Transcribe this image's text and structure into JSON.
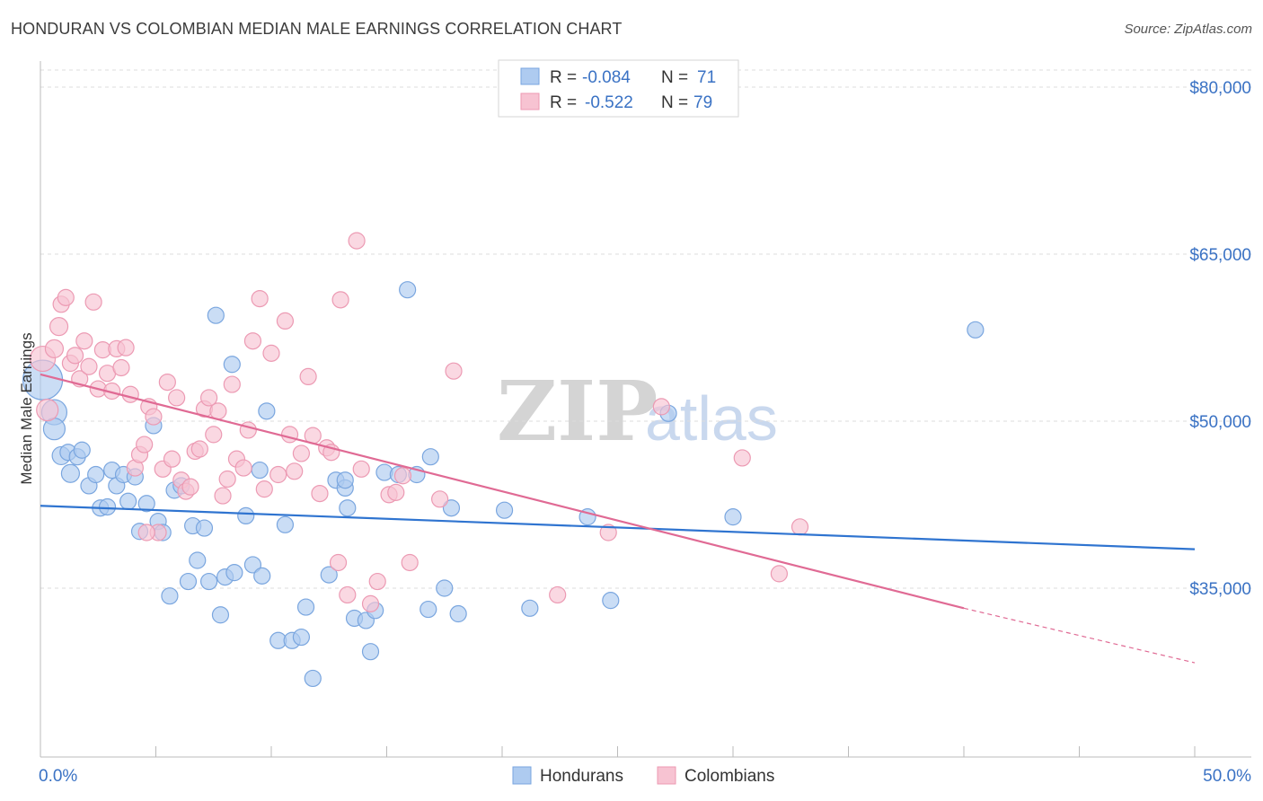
{
  "title": "HONDURAN VS COLOMBIAN MEDIAN MALE EARNINGS CORRELATION CHART",
  "source": "Source: ZipAtlas.com",
  "colors": {
    "hondurans_fill": "#aecbf0",
    "hondurans_stroke": "#7aa6df",
    "hondurans_line": "#2f74d0",
    "colombians_fill": "#f7c3d2",
    "colombians_stroke": "#ec9ab3",
    "colombians_line": "#e06a94",
    "tick_text": "#3a72c4",
    "grid": "#dddddd"
  },
  "legend": {
    "row1": {
      "r_label": "R =",
      "r_value": "-0.084",
      "n_label": "N =",
      "n_value": "71"
    },
    "row2": {
      "r_label": "R =",
      "r_value": "-0.522",
      "n_label": "N =",
      "n_value": "79"
    }
  },
  "watermark": {
    "zip": "ZIP",
    "atlas": "atlas"
  },
  "chart_data": {
    "type": "scatter",
    "title": "HONDURAN VS COLOMBIAN MEDIAN MALE EARNINGS CORRELATION CHART",
    "xlabel": "",
    "ylabel": "Median Male Earnings",
    "xlim": [
      0,
      50
    ],
    "ylim": [
      20000,
      83000
    ],
    "x_tick_labels": [
      "0.0%",
      "50.0%"
    ],
    "y_ticks": [
      35000,
      50000,
      65000,
      80000
    ],
    "y_tick_labels": [
      "$35,000",
      "$50,000",
      "$65,000",
      "$80,000"
    ],
    "grid": true,
    "legend_position": "top-center",
    "series": [
      {
        "name": "Hondurans",
        "r": -0.084,
        "n": 71,
        "trend": {
          "x": [
            0,
            50
          ],
          "y": [
            42400,
            38500
          ]
        },
        "points": [
          [
            0.1,
            53700,
            22
          ],
          [
            0.6,
            50800,
            14
          ],
          [
            0.6,
            49300,
            12
          ],
          [
            0.9,
            46900,
            10
          ],
          [
            1.2,
            47200,
            9
          ],
          [
            1.3,
            45300,
            10
          ],
          [
            1.6,
            46800,
            9
          ],
          [
            1.8,
            47400,
            9
          ],
          [
            2.1,
            44200,
            9
          ],
          [
            2.4,
            45200,
            9
          ],
          [
            2.6,
            42200,
            9
          ],
          [
            2.9,
            42300,
            9
          ],
          [
            3.1,
            45600,
            9
          ],
          [
            3.3,
            44200,
            9
          ],
          [
            3.6,
            45200,
            9
          ],
          [
            3.8,
            42800,
            9
          ],
          [
            4.1,
            45000,
            9
          ],
          [
            4.3,
            40100,
            9
          ],
          [
            4.6,
            42600,
            9
          ],
          [
            4.9,
            49600,
            9
          ],
          [
            5.1,
            41000,
            9
          ],
          [
            5.3,
            40000,
            9
          ],
          [
            5.6,
            34300,
            9
          ],
          [
            5.8,
            43800,
            9
          ],
          [
            6.1,
            44200,
            9
          ],
          [
            6.4,
            35600,
            9
          ],
          [
            6.6,
            40600,
            9
          ],
          [
            6.8,
            37500,
            9
          ],
          [
            7.1,
            40400,
            9
          ],
          [
            7.3,
            35600,
            9
          ],
          [
            7.6,
            59500,
            9
          ],
          [
            7.8,
            32600,
            9
          ],
          [
            8.0,
            36000,
            9
          ],
          [
            8.3,
            55100,
            9
          ],
          [
            8.4,
            36400,
            9
          ],
          [
            8.9,
            41500,
            9
          ],
          [
            9.2,
            37100,
            9
          ],
          [
            9.5,
            45600,
            9
          ],
          [
            9.6,
            36100,
            9
          ],
          [
            9.8,
            50900,
            9
          ],
          [
            10.3,
            30300,
            9
          ],
          [
            10.6,
            40700,
            9
          ],
          [
            10.9,
            30300,
            9
          ],
          [
            11.3,
            30600,
            9
          ],
          [
            11.5,
            33300,
            9
          ],
          [
            11.8,
            26900,
            9
          ],
          [
            12.5,
            36200,
            9
          ],
          [
            12.8,
            44700,
            9
          ],
          [
            13.2,
            44000,
            9
          ],
          [
            13.3,
            42200,
            9
          ],
          [
            13.6,
            32300,
            9
          ],
          [
            14.1,
            32100,
            9
          ],
          [
            14.3,
            29300,
            9
          ],
          [
            14.5,
            33000,
            9
          ],
          [
            14.9,
            45400,
            9
          ],
          [
            15.5,
            45200,
            9
          ],
          [
            15.9,
            61800,
            9
          ],
          [
            16.3,
            45200,
            9
          ],
          [
            16.8,
            33100,
            9
          ],
          [
            16.9,
            46800,
            9
          ],
          [
            17.5,
            35000,
            9
          ],
          [
            17.8,
            42200,
            9
          ],
          [
            18.1,
            32700,
            9
          ],
          [
            20.1,
            42000,
            9
          ],
          [
            21.2,
            33200,
            9
          ],
          [
            23.7,
            41400,
            9
          ],
          [
            24.7,
            33900,
            9
          ],
          [
            27.2,
            50700,
            9
          ],
          [
            30.0,
            41400,
            9
          ],
          [
            40.5,
            58200,
            9
          ],
          [
            13.2,
            44700,
            9
          ]
        ]
      },
      {
        "name": "Colombians",
        "r": -0.522,
        "n": 79,
        "trend": {
          "x": [
            0,
            40
          ],
          "y": [
            54200,
            33200
          ]
        },
        "trend_dashed": {
          "x": [
            40,
            50
          ],
          "y": [
            33200,
            28300
          ]
        },
        "points": [
          [
            0.1,
            55600,
            14
          ],
          [
            0.3,
            51000,
            12
          ],
          [
            0.6,
            56500,
            10
          ],
          [
            0.8,
            58500,
            10
          ],
          [
            0.9,
            60500,
            9
          ],
          [
            1.1,
            61100,
            9
          ],
          [
            1.3,
            55200,
            9
          ],
          [
            1.5,
            55900,
            9
          ],
          [
            1.7,
            53800,
            9
          ],
          [
            1.9,
            57200,
            9
          ],
          [
            2.1,
            54900,
            9
          ],
          [
            2.3,
            60700,
            9
          ],
          [
            2.5,
            52900,
            9
          ],
          [
            2.7,
            56400,
            9
          ],
          [
            2.9,
            54300,
            9
          ],
          [
            3.1,
            52700,
            9
          ],
          [
            3.3,
            56500,
            9
          ],
          [
            3.5,
            54800,
            9
          ],
          [
            3.7,
            56600,
            9
          ],
          [
            3.9,
            52400,
            9
          ],
          [
            4.1,
            45800,
            9
          ],
          [
            4.3,
            47000,
            9
          ],
          [
            4.5,
            47900,
            9
          ],
          [
            4.7,
            51300,
            9
          ],
          [
            4.9,
            50400,
            9
          ],
          [
            5.1,
            40000,
            9
          ],
          [
            5.3,
            45700,
            9
          ],
          [
            5.5,
            53500,
            9
          ],
          [
            5.7,
            46600,
            9
          ],
          [
            5.9,
            52100,
            9
          ],
          [
            6.1,
            44700,
            9
          ],
          [
            6.3,
            43700,
            9
          ],
          [
            6.5,
            44100,
            9
          ],
          [
            6.7,
            47300,
            9
          ],
          [
            6.9,
            47500,
            9
          ],
          [
            7.1,
            51100,
            9
          ],
          [
            7.3,
            52100,
            9
          ],
          [
            7.5,
            48800,
            9
          ],
          [
            7.7,
            50900,
            9
          ],
          [
            7.9,
            43300,
            9
          ],
          [
            8.1,
            44800,
            9
          ],
          [
            8.3,
            53300,
            9
          ],
          [
            8.5,
            46600,
            9
          ],
          [
            8.8,
            45800,
            9
          ],
          [
            9.0,
            49200,
            9
          ],
          [
            9.2,
            57200,
            9
          ],
          [
            9.5,
            61000,
            9
          ],
          [
            9.7,
            43900,
            9
          ],
          [
            10.0,
            56100,
            9
          ],
          [
            10.3,
            45200,
            9
          ],
          [
            10.6,
            59000,
            9
          ],
          [
            10.8,
            48800,
            9
          ],
          [
            11.0,
            45500,
            9
          ],
          [
            11.3,
            47100,
            9
          ],
          [
            11.6,
            54000,
            9
          ],
          [
            11.8,
            48700,
            9
          ],
          [
            12.1,
            43500,
            9
          ],
          [
            12.4,
            47600,
            9
          ],
          [
            12.6,
            47200,
            9
          ],
          [
            12.9,
            37300,
            9
          ],
          [
            13.0,
            60900,
            9
          ],
          [
            13.3,
            34400,
            9
          ],
          [
            13.7,
            66200,
            9
          ],
          [
            13.9,
            45700,
            9
          ],
          [
            14.3,
            33600,
            9
          ],
          [
            14.6,
            35600,
            9
          ],
          [
            15.1,
            43400,
            9
          ],
          [
            15.4,
            43600,
            9
          ],
          [
            15.7,
            45100,
            9
          ],
          [
            16.0,
            37300,
            9
          ],
          [
            17.3,
            43000,
            9
          ],
          [
            17.9,
            54500,
            9
          ],
          [
            22.4,
            34400,
            9
          ],
          [
            24.6,
            40000,
            9
          ],
          [
            26.9,
            51300,
            9
          ],
          [
            30.4,
            46700,
            9
          ],
          [
            32.0,
            36300,
            9
          ],
          [
            32.9,
            40500,
            9
          ],
          [
            4.6,
            40000,
            9
          ]
        ]
      }
    ]
  },
  "bottom_legend": {
    "hondurans": "Hondurans",
    "colombians": "Colombians"
  }
}
